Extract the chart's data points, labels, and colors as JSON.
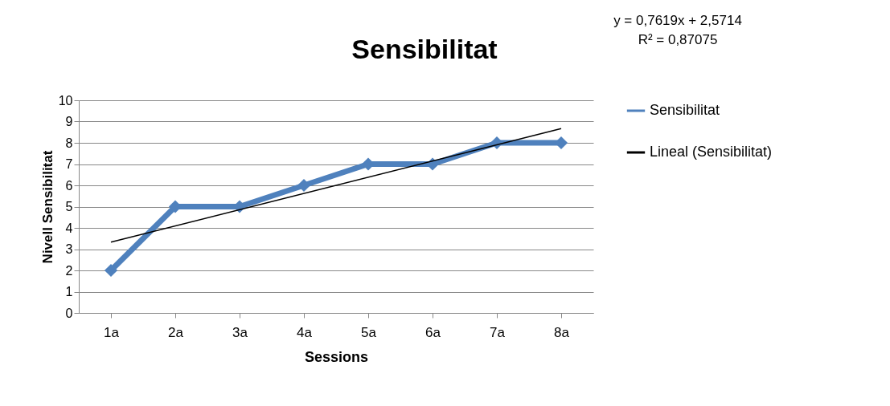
{
  "chart_data": {
    "type": "line",
    "title": "Sensibilitat",
    "xlabel": "Sessions",
    "ylabel": "Nivell Sensibilitat",
    "annotations": [
      "y = 0,7619x + 2,5714",
      "R² = 0,87075"
    ],
    "categories": [
      "1a",
      "2a",
      "3a",
      "4a",
      "5a",
      "6a",
      "7a",
      "8a"
    ],
    "series": [
      {
        "name": "Sensibilitat",
        "type": "line",
        "marker": "diamond",
        "color": "#4f81bd",
        "values": [
          2,
          5,
          5,
          6,
          7,
          7,
          8,
          8
        ]
      },
      {
        "name": "Lineal (Sensibilitat)",
        "type": "line",
        "marker": "none",
        "color": "#000000",
        "x": [
          "1a",
          "8a"
        ],
        "values": [
          3.33,
          8.67
        ]
      }
    ],
    "ylim": [
      0,
      10
    ],
    "yticks": [
      0,
      1,
      2,
      3,
      4,
      5,
      6,
      7,
      8,
      9,
      10
    ],
    "grid": "y",
    "legend": "right"
  }
}
